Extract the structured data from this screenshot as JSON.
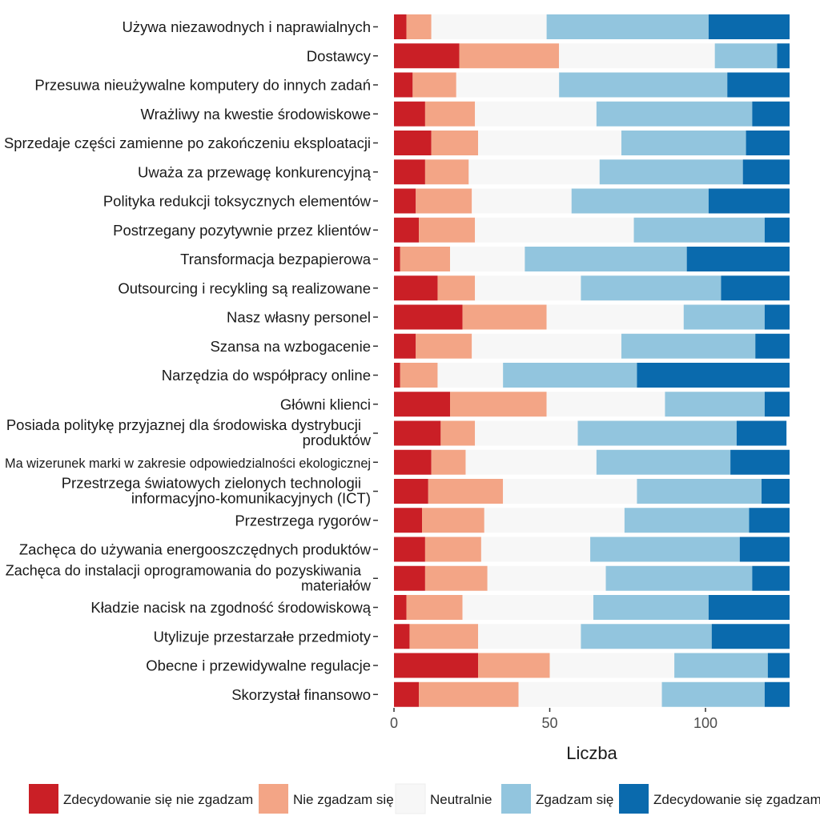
{
  "chart_data": {
    "type": "bar",
    "orientation": "horizontal",
    "stacked": true,
    "title": "",
    "xlabel": "Liczba",
    "ylabel": "",
    "xlim": [
      0,
      127
    ],
    "xticks": [
      0,
      50,
      100
    ],
    "grid": false,
    "legend_position": "bottom",
    "categories": [
      "Używa niezawodnych i naprawialnych",
      "Dostawcy",
      "Przesuwa nieużywalne komputery do innych zadań",
      "Wrażliwy na kwestie środowiskowe",
      "Sprzedaje części zamienne po zakończeniu eksploatacji",
      "Uważa za przewagę konkurencyjną",
      "Polityka redukcji toksycznych elementów",
      "Postrzegany pozytywnie przez klientów",
      "Transformacja bezpapierowa",
      "Outsourcing i recykling są realizowane",
      "Nasz własny personel",
      "Szansa na wzbogacenie",
      "Narzędzia do współpracy online",
      "Główni klienci",
      "Posiada politykę przyjaznej dla środowiska dystrybucji produktów",
      "Ma wizerunek marki w zakresie odpowiedzialności ekologicznej",
      "Przestrzega światowych zielonych technologii informacyjno-komunikacyjnych (ICT)",
      "Przestrzega rygorów",
      "Zachęca do używania energooszczędnych produktów",
      "Zachęca do instalacji oprogramowania do pozyskiwania materiałów",
      "Kładzie nacisk na zgodność środowiskową",
      "Utylizuje przestarzałe przedmioty",
      "Obecne i przewidywalne regulacje",
      "Skorzystał finansowo"
    ],
    "series": [
      {
        "name": "Zdecydowanie się nie zgadzam",
        "color": "#CA1F26",
        "values": [
          4,
          21,
          6,
          10,
          12,
          10,
          7,
          8,
          2,
          14,
          22,
          7,
          2,
          18,
          15,
          12,
          11,
          9,
          10,
          10,
          4,
          5,
          27,
          8
        ]
      },
      {
        "name": "Nie zgadzam się",
        "color": "#F3A586",
        "values": [
          8,
          32,
          14,
          16,
          15,
          14,
          18,
          18,
          16,
          12,
          27,
          18,
          12,
          31,
          11,
          11,
          24,
          20,
          18,
          20,
          18,
          22,
          23,
          32
        ]
      },
      {
        "name": "Neutralnie",
        "color": "#F7F7F7",
        "values": [
          37,
          50,
          33,
          39,
          46,
          42,
          32,
          51,
          24,
          34,
          44,
          48,
          21,
          38,
          33,
          42,
          43,
          45,
          35,
          38,
          42,
          33,
          40,
          46
        ]
      },
      {
        "name": "Zgadzam się",
        "color": "#92C5DE",
        "values": [
          52,
          20,
          54,
          50,
          40,
          46,
          44,
          42,
          52,
          45,
          26,
          43,
          43,
          32,
          51,
          43,
          40,
          40,
          48,
          47,
          37,
          42,
          30,
          33
        ]
      },
      {
        "name": "Zdecydowanie się zgadzam",
        "color": "#0A6AAD",
        "values": [
          26,
          4,
          20,
          12,
          14,
          15,
          26,
          8,
          33,
          22,
          8,
          11,
          49,
          8,
          16,
          19,
          9,
          13,
          16,
          12,
          26,
          25,
          7,
          8
        ]
      }
    ]
  }
}
